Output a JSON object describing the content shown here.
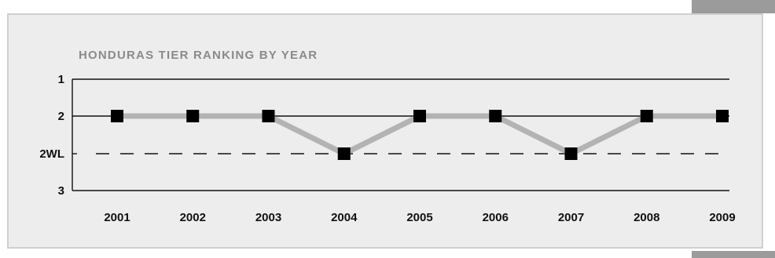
{
  "chart_data": {
    "type": "line",
    "title": "HONDURAS TIER RANKING BY YEAR",
    "x": [
      "2001",
      "2002",
      "2003",
      "2004",
      "2005",
      "2006",
      "2007",
      "2008",
      "2009"
    ],
    "y_ticks": [
      "1",
      "2",
      "2WL",
      "3"
    ],
    "series": [
      {
        "values": [
          "2",
          "2",
          "2",
          "2WL",
          "2",
          "2",
          "2WL",
          "2",
          "2"
        ]
      }
    ],
    "line_color": "#b3b3b3",
    "marker_color": "#000000",
    "marker_shape": "square",
    "dashed_reference_tick": "2WL"
  }
}
